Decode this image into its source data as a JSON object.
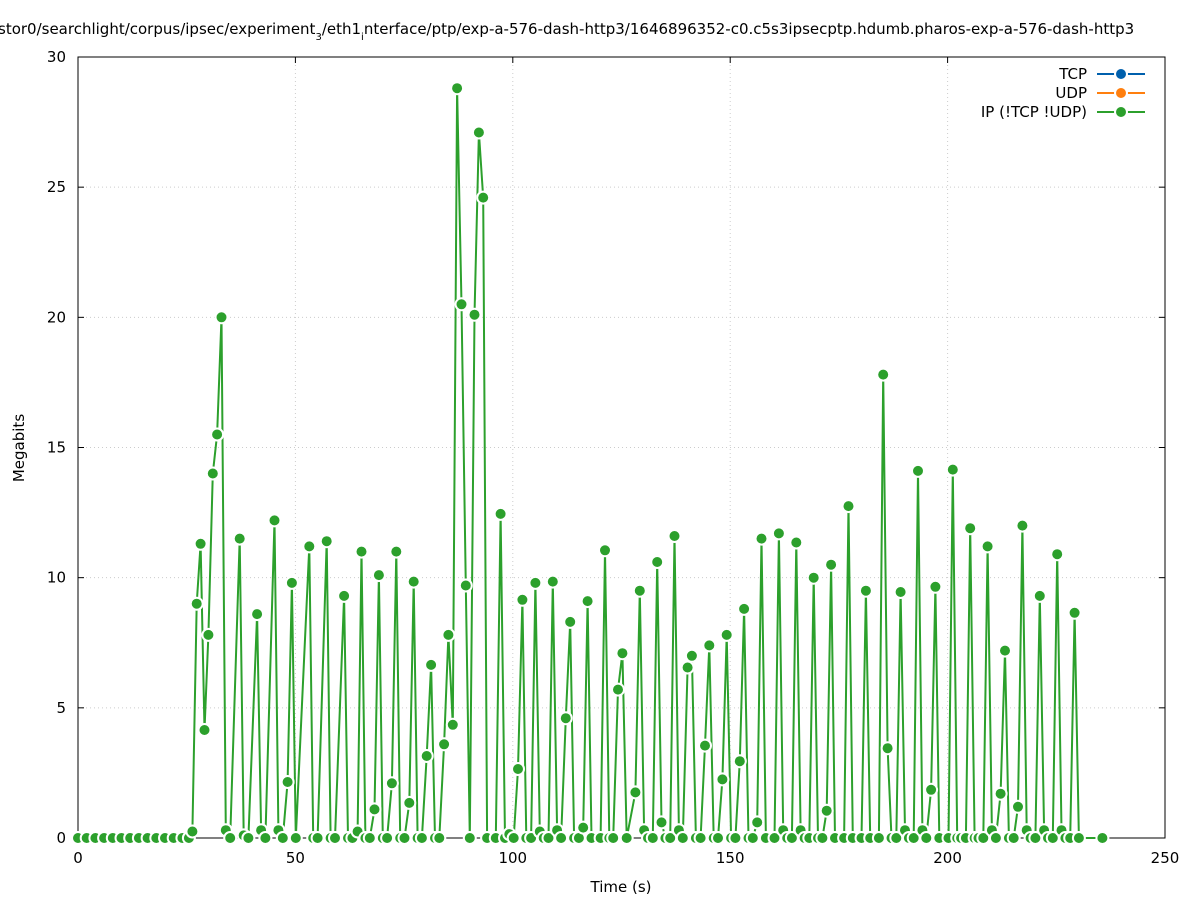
{
  "chart_data": {
    "type": "line",
    "title": "stor0/searchlight/corpus/ipsec/experiment_3/eth1_interface/ptp/exp-a-576-dash-http3/1646896352-c0.c5s3ipsecptp.hdumb.pharos-exp-a-576-dash-http3",
    "xlabel": "Time (s)",
    "ylabel": "Megabits",
    "xlim": [
      0,
      250
    ],
    "ylim": [
      0,
      30
    ],
    "xticks": [
      0,
      50,
      100,
      150,
      200,
      250
    ],
    "yticks": [
      0,
      5,
      10,
      15,
      20,
      25,
      30
    ],
    "grid": true,
    "legend_position": "top-right",
    "series": [
      {
        "name": "TCP",
        "color": "#0060ad",
        "points": []
      },
      {
        "name": "UDP",
        "color": "#ff7f0e",
        "points": []
      },
      {
        "name": "IP (!TCP  !UDP)",
        "color": "#2ca02c",
        "points": [
          [
            0,
            0
          ],
          [
            2,
            0
          ],
          [
            4,
            0
          ],
          [
            6,
            0
          ],
          [
            8,
            0
          ],
          [
            10,
            0
          ],
          [
            12,
            0
          ],
          [
            14,
            0
          ],
          [
            16,
            0
          ],
          [
            18,
            0
          ],
          [
            20,
            0
          ],
          [
            22,
            0
          ],
          [
            24,
            0
          ],
          [
            25.5,
            0
          ],
          [
            26.3,
            0.25
          ],
          [
            27.3,
            9.0
          ],
          [
            28.2,
            11.3
          ],
          [
            29.1,
            4.15
          ],
          [
            30.0,
            7.8
          ],
          [
            31.0,
            14.0
          ],
          [
            32.0,
            15.5
          ],
          [
            33.0,
            20.0
          ],
          [
            34.0,
            0.3
          ],
          [
            35.0,
            0
          ],
          [
            37.2,
            11.5
          ],
          [
            38.1,
            0.1
          ],
          [
            39.2,
            0
          ],
          [
            41.2,
            8.6
          ],
          [
            42.1,
            0.3
          ],
          [
            43.1,
            0
          ],
          [
            45.2,
            12.2
          ],
          [
            46.1,
            0.3
          ],
          [
            47.1,
            0
          ],
          [
            48.2,
            2.15
          ],
          [
            49.2,
            9.8
          ],
          [
            50.1,
            0
          ],
          [
            53.2,
            11.2
          ],
          [
            54.1,
            0
          ],
          [
            55.1,
            0
          ],
          [
            57.2,
            11.4
          ],
          [
            58.1,
            0
          ],
          [
            59.1,
            0
          ],
          [
            61.2,
            9.3
          ],
          [
            62.1,
            0
          ],
          [
            63.1,
            0
          ],
          [
            64.3,
            0.25
          ],
          [
            65.2,
            11.0
          ],
          [
            66.1,
            0
          ],
          [
            67.1,
            0
          ],
          [
            68.2,
            1.1
          ],
          [
            69.2,
            10.1
          ],
          [
            70.1,
            0
          ],
          [
            71.1,
            0
          ],
          [
            72.2,
            2.1
          ],
          [
            73.2,
            11.0
          ],
          [
            74.1,
            0
          ],
          [
            75.1,
            0
          ],
          [
            76.2,
            1.35
          ],
          [
            77.2,
            9.85
          ],
          [
            78.1,
            0
          ],
          [
            79.1,
            0
          ],
          [
            80.2,
            3.15
          ],
          [
            81.2,
            6.65
          ],
          [
            82.1,
            0
          ],
          [
            83.1,
            0
          ],
          [
            84.2,
            3.6
          ],
          [
            85.2,
            7.8
          ],
          [
            86.2,
            4.35
          ],
          [
            87.2,
            28.8
          ],
          [
            88.2,
            20.5
          ],
          [
            89.2,
            9.7
          ],
          [
            90.1,
            0
          ],
          [
            91.2,
            20.1
          ],
          [
            92.2,
            27.1
          ],
          [
            93.2,
            24.6
          ],
          [
            94.1,
            0
          ],
          [
            96.1,
            0
          ],
          [
            97.2,
            12.45
          ],
          [
            98.2,
            0
          ],
          [
            99.2,
            0.15
          ],
          [
            100.2,
            0
          ],
          [
            101.2,
            2.65
          ],
          [
            102.2,
            9.15
          ],
          [
            103.1,
            0
          ],
          [
            104.2,
            0
          ],
          [
            105.2,
            9.8
          ],
          [
            106.2,
            0.25
          ],
          [
            107.1,
            0
          ],
          [
            108.2,
            0
          ],
          [
            109.2,
            9.85
          ],
          [
            110.2,
            0.3
          ],
          [
            111.1,
            0
          ],
          [
            112.2,
            4.6
          ],
          [
            113.2,
            8.3
          ],
          [
            114.1,
            0
          ],
          [
            115.2,
            0
          ],
          [
            116.2,
            0.4
          ],
          [
            117.2,
            9.1
          ],
          [
            118.1,
            0
          ],
          [
            120.2,
            0
          ],
          [
            121.2,
            11.05
          ],
          [
            122.2,
            0
          ],
          [
            123.1,
            0
          ],
          [
            124.2,
            5.7
          ],
          [
            125.2,
            7.1
          ],
          [
            126.2,
            0
          ],
          [
            128.2,
            1.75
          ],
          [
            129.2,
            9.5
          ],
          [
            130.2,
            0.3
          ],
          [
            131.1,
            0
          ],
          [
            132.2,
            0
          ],
          [
            133.2,
            10.6
          ],
          [
            134.2,
            0.6
          ],
          [
            135.1,
            0
          ],
          [
            136.2,
            0
          ],
          [
            137.2,
            11.6
          ],
          [
            138.2,
            0.3
          ],
          [
            139.1,
            0
          ],
          [
            140.2,
            6.55
          ],
          [
            141.2,
            7.0
          ],
          [
            142.1,
            0
          ],
          [
            143.2,
            0
          ],
          [
            144.2,
            3.55
          ],
          [
            145.2,
            7.4
          ],
          [
            146.2,
            0
          ],
          [
            147.2,
            0
          ],
          [
            148.2,
            2.25
          ],
          [
            149.2,
            7.8
          ],
          [
            150.2,
            0
          ],
          [
            151.2,
            0
          ],
          [
            152.2,
            2.95
          ],
          [
            153.2,
            8.8
          ],
          [
            154.2,
            0
          ],
          [
            155.2,
            0
          ],
          [
            156.2,
            0.6
          ],
          [
            157.2,
            11.5
          ],
          [
            158.2,
            0
          ],
          [
            160.2,
            0
          ],
          [
            161.2,
            11.7
          ],
          [
            162.2,
            0.3
          ],
          [
            163.1,
            0
          ],
          [
            164.2,
            0
          ],
          [
            165.2,
            11.35
          ],
          [
            166.2,
            0.3
          ],
          [
            167.1,
            0
          ],
          [
            168.2,
            0
          ],
          [
            169.2,
            10.0
          ],
          [
            170.2,
            0
          ],
          [
            171.2,
            0
          ],
          [
            172.2,
            1.05
          ],
          [
            173.2,
            10.5
          ],
          [
            174.1,
            0
          ],
          [
            176.2,
            0
          ],
          [
            177.2,
            12.75
          ],
          [
            178.2,
            0
          ],
          [
            180.2,
            0
          ],
          [
            181.2,
            9.5
          ],
          [
            182.2,
            0
          ],
          [
            184.2,
            0
          ],
          [
            185.2,
            17.8
          ],
          [
            186.2,
            3.45
          ],
          [
            187.1,
            0
          ],
          [
            188.2,
            0
          ],
          [
            189.2,
            9.45
          ],
          [
            190.2,
            0.3
          ],
          [
            191.1,
            0
          ],
          [
            192.2,
            0
          ],
          [
            193.2,
            14.1
          ],
          [
            194.2,
            0.3
          ],
          [
            195.1,
            0
          ],
          [
            196.2,
            1.85
          ],
          [
            197.2,
            9.65
          ],
          [
            198.1,
            0
          ],
          [
            200.2,
            0
          ],
          [
            201.2,
            14.15
          ],
          [
            202.2,
            0
          ],
          [
            203.1,
            0
          ],
          [
            204.2,
            0
          ],
          [
            205.2,
            11.9
          ],
          [
            206.2,
            0
          ],
          [
            207.1,
            0
          ],
          [
            208.2,
            0
          ],
          [
            209.2,
            11.2
          ],
          [
            210.2,
            0.3
          ],
          [
            211.1,
            0
          ],
          [
            212.2,
            1.7
          ],
          [
            213.2,
            7.2
          ],
          [
            214.1,
            0
          ],
          [
            215.2,
            0
          ],
          [
            216.2,
            1.2
          ],
          [
            217.2,
            12.0
          ],
          [
            218.2,
            0.3
          ],
          [
            219.1,
            0
          ],
          [
            220.2,
            0
          ],
          [
            221.2,
            9.3
          ],
          [
            222.2,
            0.3
          ],
          [
            223.1,
            0
          ],
          [
            224.2,
            0
          ],
          [
            225.2,
            10.9
          ],
          [
            226.2,
            0.3
          ],
          [
            227.1,
            0
          ],
          [
            228.2,
            0
          ],
          [
            229.2,
            8.65
          ],
          [
            230.2,
            0
          ],
          [
            235.6,
            0
          ]
        ]
      }
    ]
  }
}
